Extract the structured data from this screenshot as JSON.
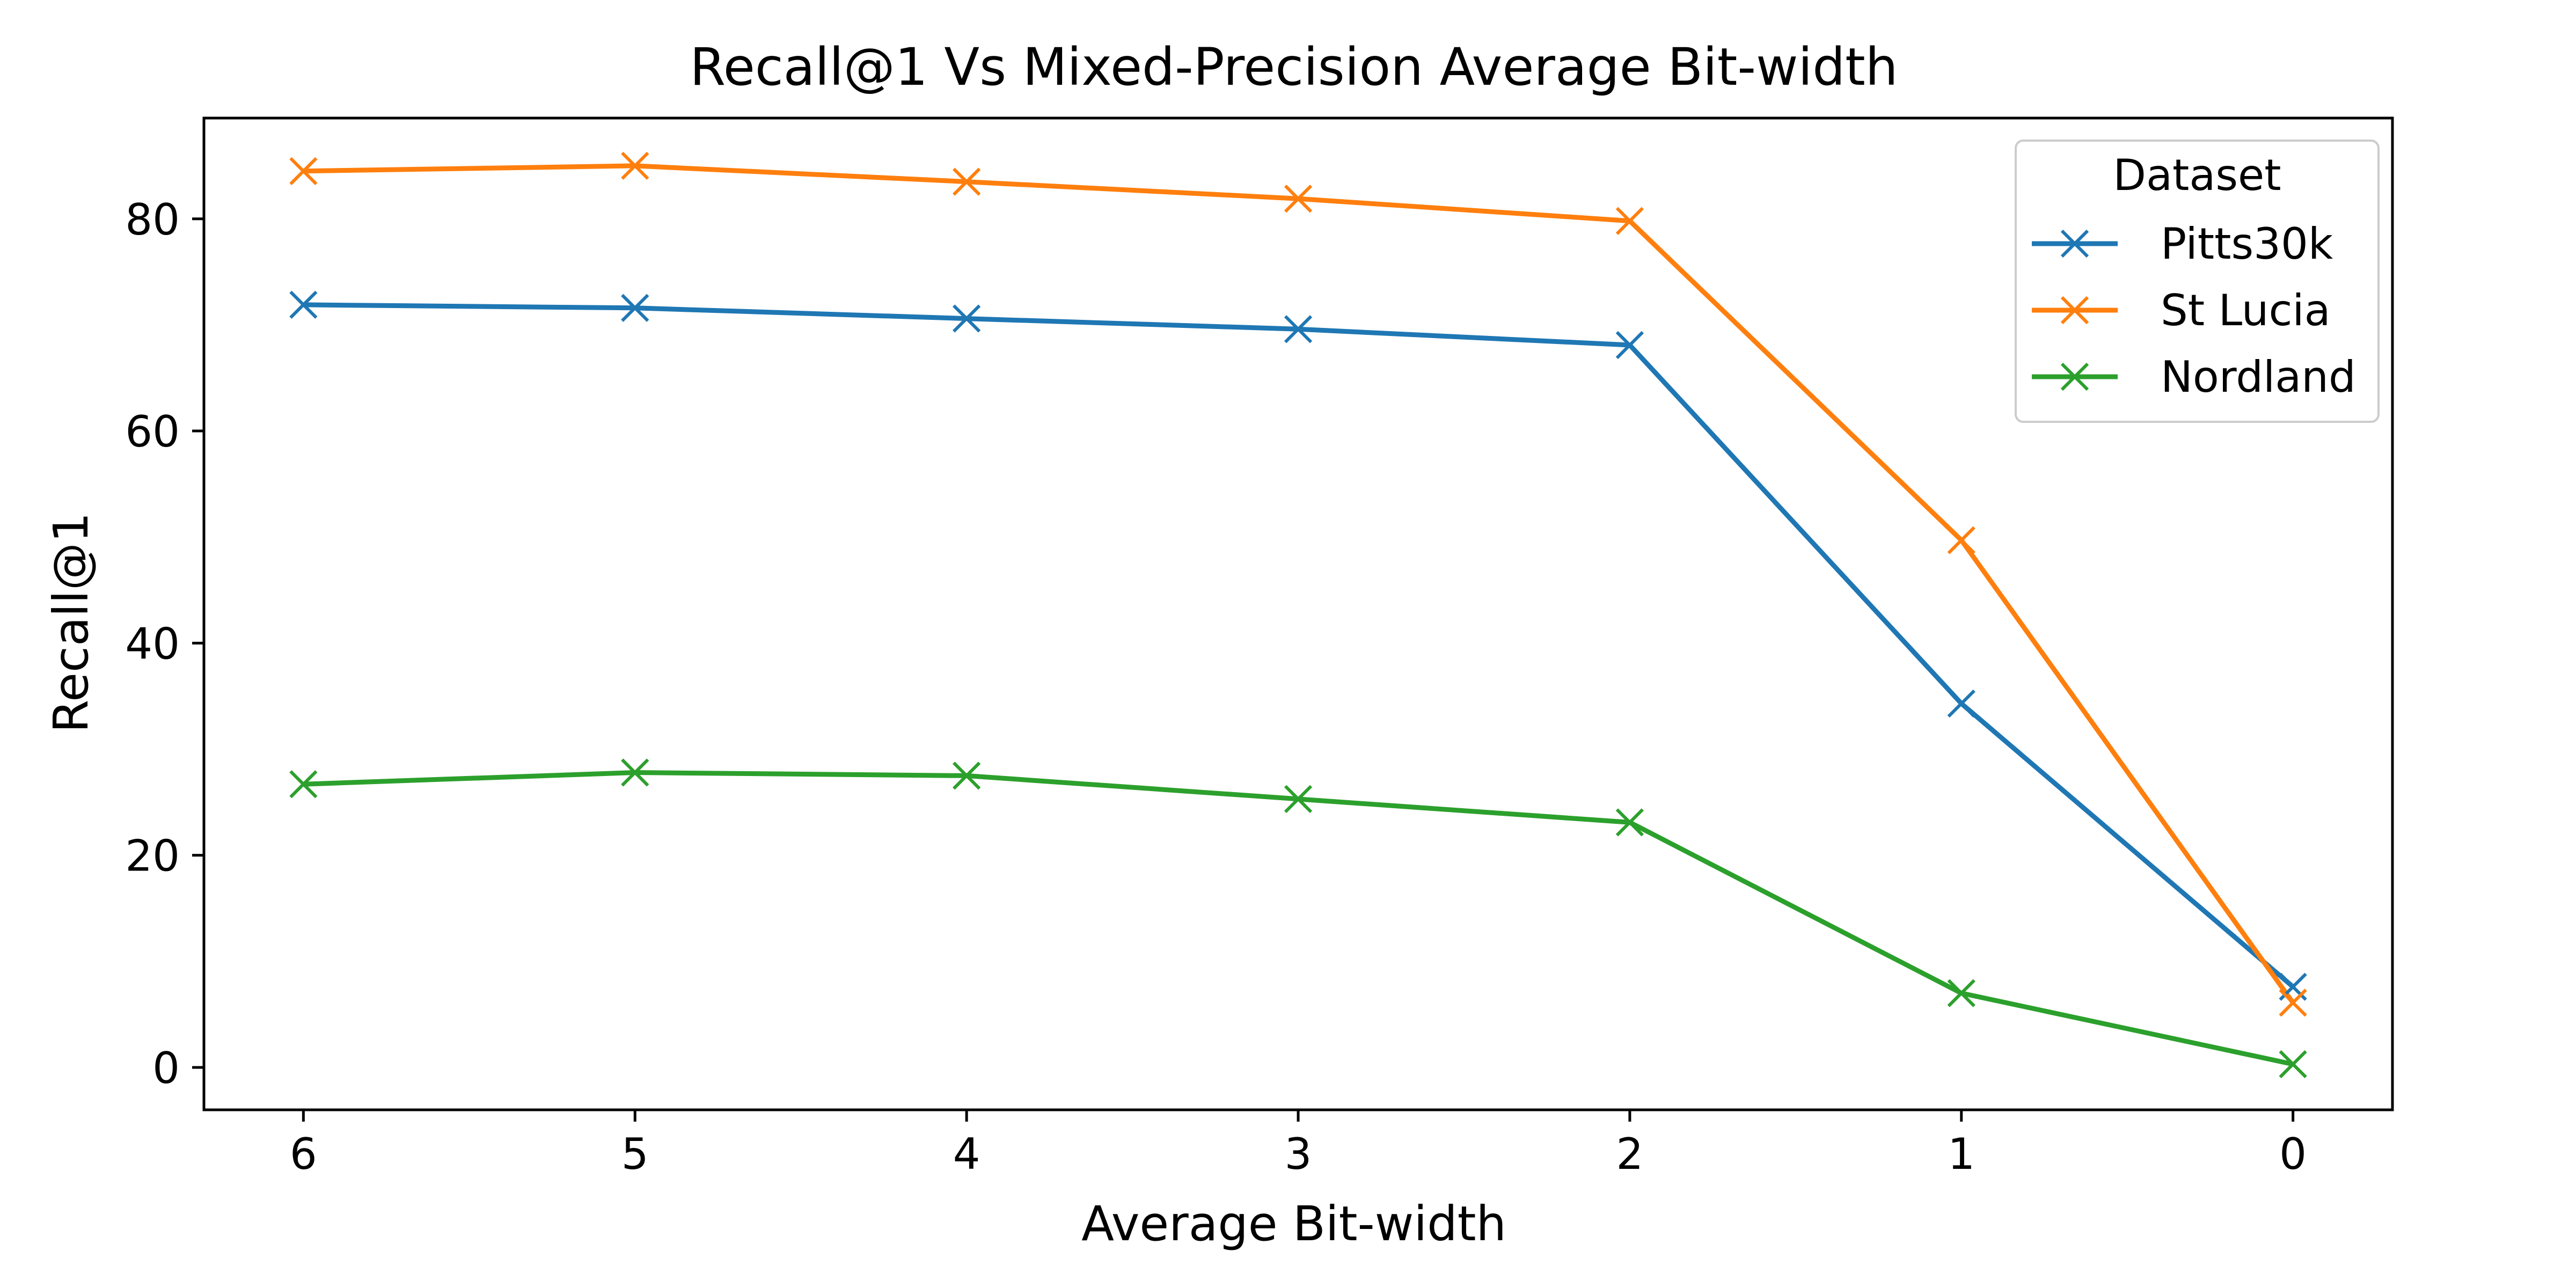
{
  "chart_data": {
    "type": "line",
    "title": "Recall@1 Vs Mixed-Precision Average Bit-width",
    "xlabel": "Average Bit-width",
    "ylabel": "Recall@1",
    "x": [
      6,
      5,
      4,
      3,
      2,
      1,
      0
    ],
    "x_tick_labels": [
      "6",
      "5",
      "4",
      "3",
      "2",
      "1",
      "0"
    ],
    "y_ticks": [
      0,
      20,
      40,
      60,
      80
    ],
    "y_tick_labels": [
      "0",
      "20",
      "40",
      "60",
      "80"
    ],
    "xlim": [
      6.3,
      -0.3
    ],
    "ylim": [
      -4,
      89.5
    ],
    "grid": false,
    "marker": "x",
    "legend": {
      "title": "Dataset",
      "position": "top-right"
    },
    "series": [
      {
        "name": "Pitts30k",
        "color": "#1f77b4",
        "values": [
          71.9,
          71.6,
          70.6,
          69.6,
          68.1,
          34.3,
          7.6
        ]
      },
      {
        "name": "St Lucia",
        "color": "#ff7f0e",
        "values": [
          84.5,
          85.0,
          83.5,
          81.9,
          79.8,
          49.7,
          6.1
        ]
      },
      {
        "name": "Nordland",
        "color": "#2ca02c",
        "values": [
          26.7,
          27.8,
          27.5,
          25.3,
          23.1,
          7.0,
          0.3
        ]
      }
    ]
  }
}
